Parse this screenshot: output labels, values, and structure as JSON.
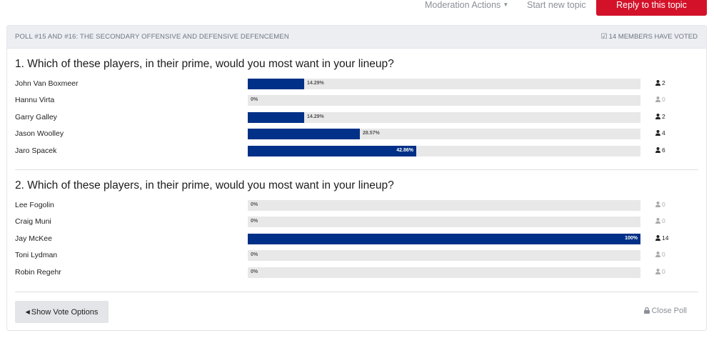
{
  "topbar": {
    "moderation_label": "Moderation Actions",
    "start_topic_label": "Start new topic",
    "reply_label": "Reply to this topic",
    "reply_color": "#d3122a"
  },
  "poll": {
    "title": "POLL #15 AND #16: THE SECONDARY OFFENSIVE AND DEFENSIVE DEFENCEMEN",
    "voted_text": "14 MEMBERS HAVE VOTED",
    "bar_color": "#003087",
    "questions": [
      {
        "text": "1. Which of these players, in their prime, would you most want in your lineup?",
        "options": [
          {
            "name": "John Van Boxmeer",
            "percent": "14.29%",
            "fraction": 0.1429,
            "votes": "2"
          },
          {
            "name": "Hannu Virta",
            "percent": "0%",
            "fraction": 0,
            "votes": "0"
          },
          {
            "name": "Garry Galley",
            "percent": "14.29%",
            "fraction": 0.1429,
            "votes": "2"
          },
          {
            "name": "Jason Woolley",
            "percent": "28.57%",
            "fraction": 0.2857,
            "votes": "4"
          },
          {
            "name": "Jaro Spacek",
            "percent": "42.86%",
            "fraction": 0.4286,
            "votes": "6"
          }
        ]
      },
      {
        "text": "2. Which of these players, in their prime, would you most want in your lineup?",
        "options": [
          {
            "name": "Lee Fogolin",
            "percent": "0%",
            "fraction": 0,
            "votes": "0"
          },
          {
            "name": "Craig Muni",
            "percent": "0%",
            "fraction": 0,
            "votes": "0"
          },
          {
            "name": "Jay McKee",
            "percent": "100%",
            "fraction": 1.0,
            "votes": "14"
          },
          {
            "name": "Toni Lydman",
            "percent": "0%",
            "fraction": 0,
            "votes": "0"
          },
          {
            "name": "Robin Regehr",
            "percent": "0%",
            "fraction": 0,
            "votes": "0"
          }
        ]
      }
    ],
    "show_vote_label": "Show Vote Options",
    "close_poll_label": "Close Poll"
  }
}
